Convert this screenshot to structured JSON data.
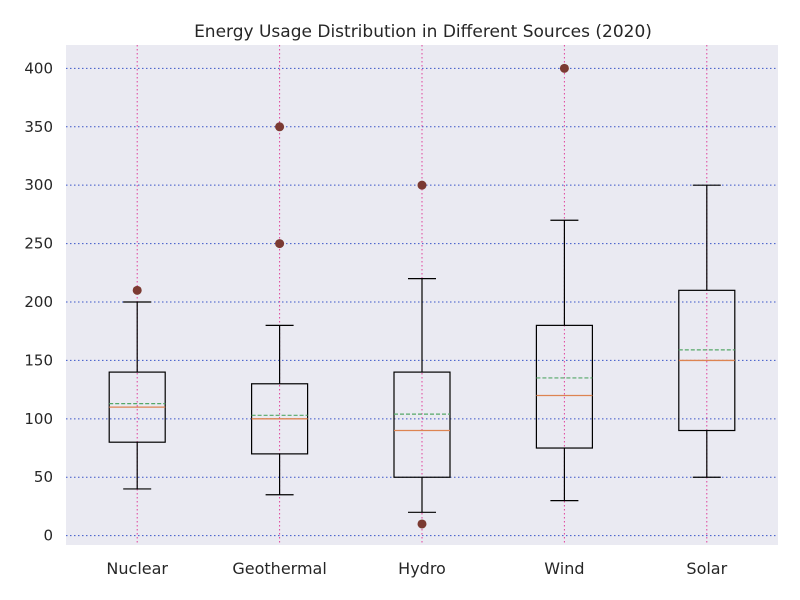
{
  "chart_data": {
    "type": "box",
    "title": "Energy Usage Distribution in Different Sources (2020)",
    "xlabel": "",
    "ylabel": "",
    "ylim": [
      -8,
      420
    ],
    "yticks": [
      0,
      50,
      100,
      150,
      200,
      250,
      300,
      350,
      400
    ],
    "categories": [
      "Nuclear",
      "Geothermal",
      "Hydro",
      "Wind",
      "Solar"
    ],
    "boxes": [
      {
        "whisker_low": 40,
        "q1": 80,
        "median": 110,
        "mean": 113,
        "q3": 140,
        "whisker_high": 200,
        "outliers": [
          210
        ]
      },
      {
        "whisker_low": 35,
        "q1": 70,
        "median": 100,
        "mean": 103,
        "q3": 130,
        "whisker_high": 180,
        "outliers": [
          250,
          350
        ]
      },
      {
        "whisker_low": 20,
        "q1": 50,
        "median": 90,
        "mean": 104,
        "q3": 140,
        "whisker_high": 220,
        "outliers": [
          10,
          300
        ]
      },
      {
        "whisker_low": 30,
        "q1": 75,
        "median": 120,
        "mean": 135,
        "q3": 180,
        "whisker_high": 270,
        "outliers": [
          400
        ]
      },
      {
        "whisker_low": 50,
        "q1": 90,
        "median": 150,
        "mean": 159,
        "q3": 210,
        "whisker_high": 300,
        "outliers": []
      }
    ],
    "grid": true,
    "colors": {
      "background": "#eaeaf2",
      "box": "#000000",
      "median": "#dd8452",
      "mean": "#55a868",
      "outlier": "#7b3a32",
      "ygrid": "#3a55c8",
      "xgrid": "#e0409a"
    }
  }
}
